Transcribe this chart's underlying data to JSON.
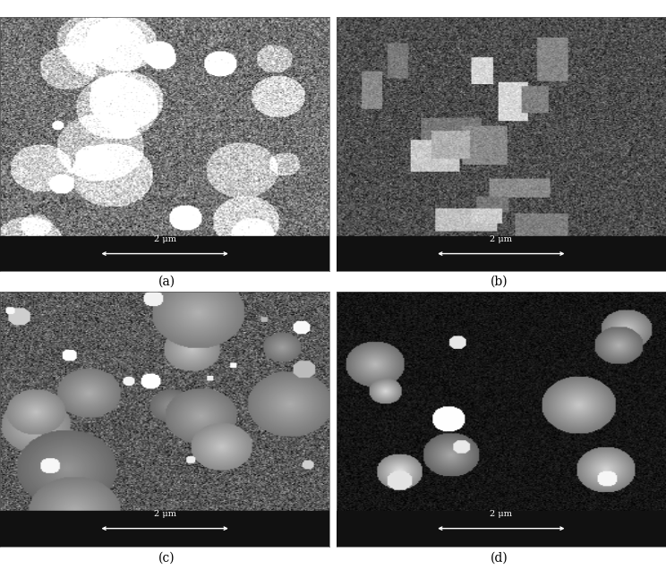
{
  "figure_width": 7.44,
  "figure_height": 6.36,
  "dpi": 100,
  "background_color": "#ffffff",
  "labels": [
    "(a)",
    "(b)",
    "(c)",
    "(d)"
  ],
  "scale_bar_text": "2 μm",
  "scale_bar_color": "#ffffff",
  "image_border_color": "#000000",
  "panel_bg_colors": [
    "#888888",
    "#909090",
    "#858585",
    "#181818"
  ],
  "scale_bar_bg": "#111111",
  "label_fontsize": 10,
  "scale_fontsize": 8,
  "seeds": [
    42,
    123,
    77,
    200
  ],
  "grid_rows": 2,
  "grid_cols": 2
}
